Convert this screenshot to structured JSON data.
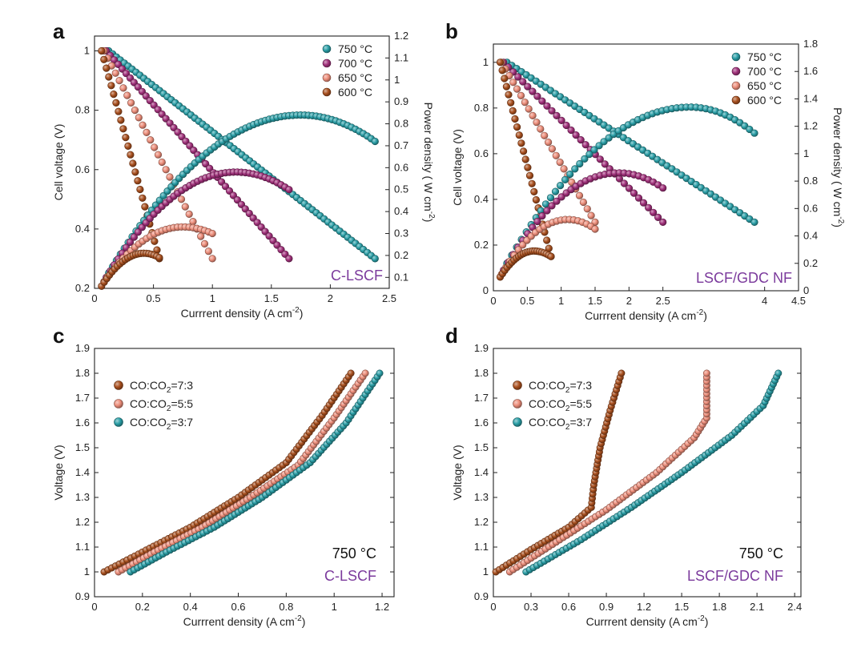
{
  "colors": {
    "c750": "#2a9ea6",
    "c700": "#a0307a",
    "c650": "#ec8d7a",
    "c600": "#a9501f",
    "co73": "#a9501f",
    "co55": "#ec8d7a",
    "co37": "#2a9ea6",
    "label_purple": "#7b3a9c"
  },
  "chart_data": [
    {
      "panel": "a",
      "type": "scatter",
      "xlabel": "Currrent density (A cm",
      "xlabel_sup": "-2",
      "xlabel_end": ")",
      "ylabel": "Cell voltage (V)",
      "y2label": "Power density ( W cm",
      "y2label_sup": "-2",
      "y2label_end": ")",
      "xlim": [
        0,
        2.5
      ],
      "ylim": [
        0.2,
        1.05
      ],
      "y2lim": [
        0.05,
        1.2
      ],
      "xticks": [
        "0",
        "0.5",
        "1",
        "1.5",
        "2",
        "2.5"
      ],
      "yticks": [
        "0.2",
        "0.4",
        "0.6",
        "0.8",
        "1"
      ],
      "y2ticks": [
        "0.1",
        "0.2",
        "0.3",
        "0.4",
        "0.5",
        "0.6",
        "0.7",
        "0.8",
        "0.9",
        "1",
        "1.1",
        "1.2"
      ],
      "legend": [
        "750 °C",
        "700 °C",
        "650 °C",
        "600 °C"
      ],
      "annotation": "C-LSCF",
      "series": [
        {
          "name": "750 °C",
          "curve": "voltage",
          "x_start": 0.12,
          "x_end": 2.38,
          "y_start": 1.0,
          "y_end": 0.3,
          "shape": 0.05
        },
        {
          "name": "700 °C",
          "curve": "voltage",
          "x_start": 0.1,
          "x_end": 1.65,
          "y_start": 1.0,
          "y_end": 0.3,
          "shape": 0.03
        },
        {
          "name": "650 °C",
          "curve": "voltage",
          "x_start": 0.08,
          "x_end": 1.0,
          "y_start": 1.0,
          "y_end": 0.3,
          "shape": 0.0
        },
        {
          "name": "600 °C",
          "curve": "voltage",
          "x_start": 0.06,
          "x_end": 0.55,
          "y_start": 1.0,
          "y_end": 0.3,
          "shape": -0.1
        },
        {
          "name": "750 °C",
          "curve": "power",
          "x_start": 0.12,
          "x_end": 2.38,
          "y_start": 0.12,
          "y_end": 0.72,
          "peak_x": 1.75,
          "peak_y": 0.84
        },
        {
          "name": "700 °C",
          "curve": "power",
          "x_start": 0.1,
          "x_end": 1.65,
          "y_start": 0.1,
          "y_end": 0.5,
          "peak_x": 1.2,
          "peak_y": 0.58
        },
        {
          "name": "650 °C",
          "curve": "power",
          "x_start": 0.08,
          "x_end": 1.0,
          "y_start": 0.08,
          "y_end": 0.3,
          "peak_x": 0.75,
          "peak_y": 0.33
        },
        {
          "name": "600 °C",
          "curve": "power",
          "x_start": 0.06,
          "x_end": 0.55,
          "y_start": 0.06,
          "y_end": 0.19,
          "peak_x": 0.42,
          "peak_y": 0.21
        }
      ]
    },
    {
      "panel": "b",
      "type": "scatter",
      "xlabel": "Currrent density (A cm",
      "xlabel_sup": "-2",
      "xlabel_end": ")",
      "ylabel": "Cell voltage (V)",
      "y2label": "Power density ( W cm",
      "y2label_sup": "-2",
      "y2label_end": ")",
      "xlim": [
        0,
        4.5
      ],
      "ylim": [
        0.0,
        1.08
      ],
      "y2lim": [
        0.0,
        1.8
      ],
      "xticks": [
        "0",
        "0.5",
        "1",
        "1.5",
        "2",
        "2.5",
        "4",
        "4.5"
      ],
      "xtick_values": [
        0,
        0.5,
        1,
        1.5,
        2,
        2.5,
        4,
        4.5
      ],
      "yticks": [
        "0",
        "0.2",
        "0.4",
        "0.6",
        "0.8",
        "1"
      ],
      "y2ticks": [
        "0",
        "0.2",
        "0.4",
        "0.6",
        "0.8",
        "1",
        "1.2",
        "1.4",
        "1.6",
        "1.8"
      ],
      "legend": [
        "750 °C",
        "700 °C",
        "650 °C",
        "600 °C"
      ],
      "annotation": "LSCF/GDC NF",
      "series": [
        {
          "name": "750 °C",
          "curve": "voltage",
          "x_start": 0.2,
          "x_end": 3.85,
          "y_start": 1.0,
          "y_end": 0.3,
          "shape": 0.05
        },
        {
          "name": "700 °C",
          "curve": "voltage",
          "x_start": 0.15,
          "x_end": 2.5,
          "y_start": 1.0,
          "y_end": 0.3,
          "shape": 0.03
        },
        {
          "name": "650 °C",
          "curve": "voltage",
          "x_start": 0.12,
          "x_end": 1.5,
          "y_start": 1.0,
          "y_end": 0.3,
          "shape": 0.0
        },
        {
          "name": "600 °C",
          "curve": "voltage",
          "x_start": 0.1,
          "x_end": 0.85,
          "y_start": 1.0,
          "y_end": 0.15,
          "shape": -0.1
        },
        {
          "name": "750 °C",
          "curve": "power",
          "x_start": 0.2,
          "x_end": 3.85,
          "y_start": 0.2,
          "y_end": 1.15,
          "peak_x": 2.9,
          "peak_y": 1.34
        },
        {
          "name": "700 °C",
          "curve": "power",
          "x_start": 0.15,
          "x_end": 2.5,
          "y_start": 0.15,
          "y_end": 0.75,
          "peak_x": 1.85,
          "peak_y": 0.86
        },
        {
          "name": "650 °C",
          "curve": "power",
          "x_start": 0.12,
          "x_end": 1.5,
          "y_start": 0.12,
          "y_end": 0.45,
          "peak_x": 1.1,
          "peak_y": 0.52
        },
        {
          "name": "600 °C",
          "curve": "power",
          "x_start": 0.1,
          "x_end": 0.85,
          "y_start": 0.1,
          "y_end": 0.25,
          "peak_x": 0.6,
          "peak_y": 0.29
        }
      ]
    },
    {
      "panel": "c",
      "type": "scatter",
      "xlabel": "Currrent density (A cm",
      "xlabel_sup": "-2",
      "xlabel_end": ")",
      "ylabel": "Voltage (V)",
      "xlim": [
        0,
        1.25
      ],
      "ylim": [
        0.9,
        1.9
      ],
      "xticks": [
        "0",
        "0.2",
        "0.4",
        "0.6",
        "0.8",
        "1",
        "1.2"
      ],
      "yticks": [
        "0.9",
        "1",
        "1.1",
        "1.2",
        "1.3",
        "1.4",
        "1.5",
        "1.6",
        "1.7",
        "1.8",
        "1.9"
      ],
      "legend": [
        "CO:CO2=7:3",
        "CO:CO2=5:5",
        "CO:CO2=3:7"
      ],
      "annotation_temp": "750 °C",
      "annotation": "C-LSCF",
      "series": [
        {
          "name": "CO:CO2=7:3",
          "points": [
            [
              0.04,
              1.0
            ],
            [
              0.2,
              1.08
            ],
            [
              0.4,
              1.18
            ],
            [
              0.6,
              1.3
            ],
            [
              0.8,
              1.44
            ],
            [
              0.95,
              1.63
            ],
            [
              1.07,
              1.8
            ]
          ]
        },
        {
          "name": "CO:CO2=5:5",
          "points": [
            [
              0.1,
              1.0
            ],
            [
              0.25,
              1.08
            ],
            [
              0.45,
              1.18
            ],
            [
              0.65,
              1.3
            ],
            [
              0.85,
              1.43
            ],
            [
              1.0,
              1.62
            ],
            [
              1.13,
              1.8
            ]
          ]
        },
        {
          "name": "CO:CO2=3:7",
          "points": [
            [
              0.15,
              1.0
            ],
            [
              0.3,
              1.08
            ],
            [
              0.5,
              1.18
            ],
            [
              0.7,
              1.3
            ],
            [
              0.9,
              1.44
            ],
            [
              1.05,
              1.6
            ],
            [
              1.19,
              1.8
            ]
          ]
        }
      ]
    },
    {
      "panel": "d",
      "type": "scatter",
      "xlabel": "Currrent density (A cm",
      "xlabel_sup": "-2",
      "xlabel_end": ")",
      "ylabel": "Voltage (V)",
      "xlim": [
        0,
        2.45
      ],
      "ylim": [
        0.9,
        1.9
      ],
      "xticks": [
        "0",
        "0.3",
        "0.6",
        "0.9",
        "1.2",
        "1.5",
        "1.8",
        "2.1",
        "2.4"
      ],
      "yticks": [
        "0.9",
        "1",
        "1.1",
        "1.2",
        "1.3",
        "1.4",
        "1.5",
        "1.6",
        "1.7",
        "1.8",
        "1.9"
      ],
      "legend": [
        "CO:CO2=7:3",
        "CO:CO2=5:5",
        "CO:CO2=3:7"
      ],
      "annotation_temp": "750 °C",
      "annotation": "LSCF/GDC NF",
      "series": [
        {
          "name": "CO:CO2=7:3",
          "points": [
            [
              0.02,
              1.0
            ],
            [
              0.3,
              1.09
            ],
            [
              0.6,
              1.18
            ],
            [
              0.78,
              1.26
            ],
            [
              0.8,
              1.35
            ],
            [
              0.85,
              1.5
            ],
            [
              0.93,
              1.65
            ],
            [
              1.02,
              1.8
            ]
          ]
        },
        {
          "name": "CO:CO2=5:5",
          "points": [
            [
              0.13,
              1.0
            ],
            [
              0.5,
              1.12
            ],
            [
              0.9,
              1.25
            ],
            [
              1.3,
              1.4
            ],
            [
              1.6,
              1.54
            ],
            [
              1.7,
              1.62
            ],
            [
              1.7,
              1.8
            ]
          ]
        },
        {
          "name": "CO:CO2=3:7",
          "points": [
            [
              0.26,
              1.0
            ],
            [
              0.7,
              1.13
            ],
            [
              1.1,
              1.26
            ],
            [
              1.5,
              1.4
            ],
            [
              1.9,
              1.55
            ],
            [
              2.15,
              1.67
            ],
            [
              2.27,
              1.8
            ]
          ]
        }
      ]
    }
  ]
}
